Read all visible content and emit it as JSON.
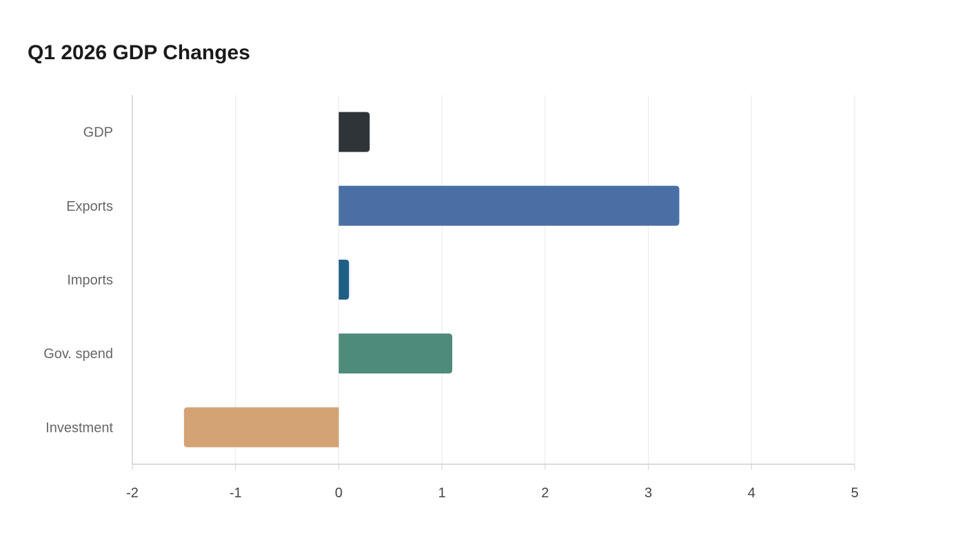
{
  "chart_data": {
    "type": "bar",
    "orientation": "horizontal",
    "title": "Q1 2026 GDP Changes",
    "xlabel": "",
    "ylabel": "",
    "categories": [
      "GDP",
      "Exports",
      "Imports",
      "Gov. spend",
      "Investment"
    ],
    "values": [
      0.3,
      3.3,
      0.1,
      1.1,
      -1.5
    ],
    "colors": [
      "#2f3438",
      "#4a6fa5",
      "#1f5f86",
      "#4e8b7a",
      "#d4a373"
    ],
    "xlim": [
      -2,
      5
    ],
    "xticks": [
      "-2",
      "-1",
      "0",
      "1",
      "2",
      "3",
      "4",
      "5"
    ],
    "grid": true,
    "gridline_color": "#e8e8e8",
    "axis_color": "#d0d0d0",
    "legend": "none"
  }
}
